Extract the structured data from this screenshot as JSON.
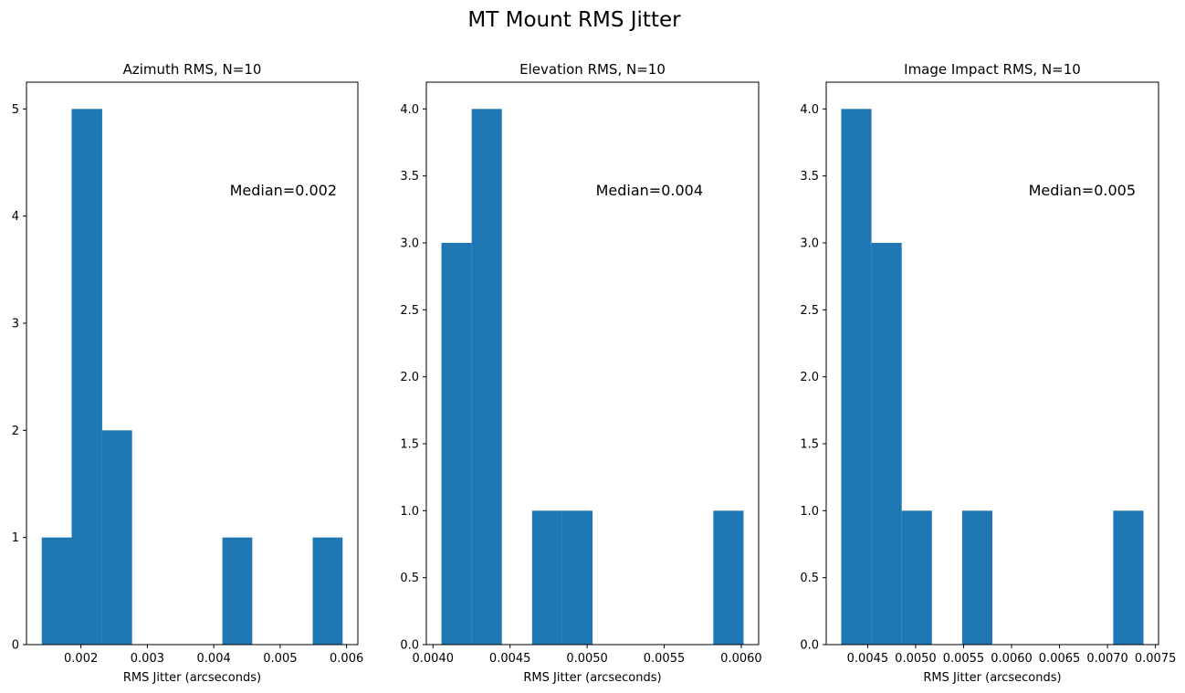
{
  "figure": {
    "suptitle": "MT Mount RMS Jitter",
    "bar_color": "#1f77b4"
  },
  "chart_data": [
    {
      "type": "bar",
      "title": "Azimuth RMS, N=10",
      "xlabel": "RMS Jitter (arcseconds)",
      "ylabel": "",
      "annotation": "Median=0.002",
      "bin_edges": [
        0.00141,
        0.00186,
        0.00232,
        0.00277,
        0.00322,
        0.00367,
        0.00413,
        0.00458,
        0.00503,
        0.00549,
        0.00594
      ],
      "counts": [
        1,
        5,
        2,
        0,
        0,
        0,
        1,
        0,
        0,
        1
      ],
      "xlim": [
        0.00118,
        0.00617
      ],
      "ylim": [
        0,
        5.25
      ],
      "xticks": [
        0.002,
        0.003,
        0.004,
        0.005,
        0.006
      ],
      "xtick_labels": [
        "0.002",
        "0.003",
        "0.004",
        "0.005",
        "0.006"
      ],
      "yticks": [
        0,
        1,
        2,
        3,
        4,
        5
      ],
      "ytick_labels": [
        "0",
        "1",
        "2",
        "3",
        "4",
        "5"
      ]
    },
    {
      "type": "bar",
      "title": "Elevation RMS, N=10",
      "xlabel": "RMS Jitter (arcseconds)",
      "ylabel": "",
      "annotation": "Median=0.004",
      "bin_edges": [
        0.004055,
        0.004251,
        0.004447,
        0.004643,
        0.004839,
        0.005035,
        0.005231,
        0.005427,
        0.005623,
        0.005819,
        0.006015
      ],
      "counts": [
        3,
        4,
        0,
        1,
        1,
        0,
        0,
        0,
        0,
        1
      ],
      "xlim": [
        0.003957,
        0.006113
      ],
      "ylim": [
        0,
        4.2
      ],
      "xticks": [
        0.004,
        0.0045,
        0.005,
        0.0055,
        0.006
      ],
      "xtick_labels": [
        "0.0040",
        "0.0045",
        "0.0050",
        "0.0055",
        "0.0060"
      ],
      "yticks": [
        0,
        0.5,
        1,
        1.5,
        2,
        2.5,
        3,
        3.5,
        4
      ],
      "ytick_labels": [
        "0.0",
        "0.5",
        "1.0",
        "1.5",
        "2.0",
        "2.5",
        "3.0",
        "3.5",
        "4.0"
      ]
    },
    {
      "type": "bar",
      "title": "Image Impact RMS, N=10",
      "xlabel": "RMS Jitter (arcseconds)",
      "ylabel": "",
      "annotation": "Median=0.005",
      "bin_edges": [
        0.004225,
        0.00454,
        0.004855,
        0.00517,
        0.005485,
        0.0058,
        0.006115,
        0.00643,
        0.006745,
        0.00706,
        0.007375
      ],
      "counts": [
        4,
        3,
        1,
        0,
        1,
        0,
        0,
        0,
        0,
        1
      ],
      "xlim": [
        0.004068,
        0.007532
      ],
      "ylim": [
        0,
        4.2
      ],
      "xticks": [
        0.0045,
        0.005,
        0.0055,
        0.006,
        0.0065,
        0.007,
        0.0075
      ],
      "xtick_labels": [
        "0.0045",
        "0.0050",
        "0.0055",
        "0.0060",
        "0.0065",
        "0.0070",
        "0.0075"
      ],
      "yticks": [
        0,
        0.5,
        1,
        1.5,
        2,
        2.5,
        3,
        3.5,
        4
      ],
      "ytick_labels": [
        "0.0",
        "0.5",
        "1.0",
        "1.5",
        "2.0",
        "2.5",
        "3.0",
        "3.5",
        "4.0"
      ]
    }
  ]
}
